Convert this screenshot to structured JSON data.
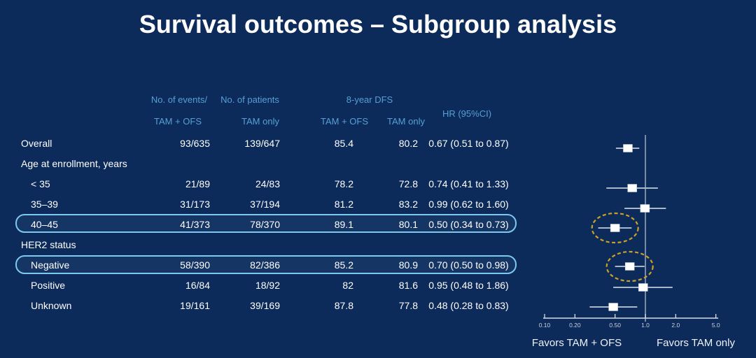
{
  "title": "Survival outcomes – Subgroup analysis",
  "colors": {
    "background": "#0d2b5a",
    "header_text": "#55a0d5",
    "body_text": "#ffffff",
    "highlight_border": "#7cc8ee",
    "ellipse": "#c9a227",
    "whisker": "#aab7c9",
    "reference_line": "#93a2b8",
    "axis": "#d5dce6",
    "marker_fill": "#ffffff"
  },
  "table": {
    "header": {
      "events_label_1": "No. of events/",
      "events_label_2": "No. of patients",
      "dfs_label": "8-year DFS",
      "hr_label": "HR (95%CI)",
      "sub": [
        "TAM + OFS",
        "TAM only",
        "TAM + OFS",
        "TAM only"
      ]
    },
    "rows": [
      {
        "label": "Overall",
        "events_tam_ofs": "93/635",
        "events_tam_only": "139/647",
        "dfs_tam_ofs": "85.4",
        "dfs_tam_only": "80.2",
        "hr": "0.67 (0.51 to 0.87)",
        "section": false,
        "highlight": false
      },
      {
        "label": "Age at enrollment, years",
        "section": true,
        "highlight": false
      },
      {
        "label": "< 35",
        "events_tam_ofs": "21/89",
        "events_tam_only": "24/83",
        "dfs_tam_ofs": "78.2",
        "dfs_tam_only": "72.8",
        "hr": "0.74 (0.41 to 1.33)",
        "section": false,
        "highlight": false
      },
      {
        "label": "35–39",
        "events_tam_ofs": "31/173",
        "events_tam_only": "37/194",
        "dfs_tam_ofs": "81.2",
        "dfs_tam_only": "83.2",
        "hr": "0.99 (0.62 to 1.60)",
        "section": false,
        "highlight": false
      },
      {
        "label": "40–45",
        "events_tam_ofs": "41/373",
        "events_tam_only": "78/370",
        "dfs_tam_ofs": "89.1",
        "dfs_tam_only": "80.1",
        "hr": "0.50 (0.34 to 0.73)",
        "section": false,
        "highlight": true
      },
      {
        "label": "HER2 status",
        "section": true,
        "highlight": false
      },
      {
        "label": "Negative",
        "events_tam_ofs": "58/390",
        "events_tam_only": "82/386",
        "dfs_tam_ofs": "85.2",
        "dfs_tam_only": "80.9",
        "hr": "0.70 (0.50 to 0.98)",
        "section": false,
        "highlight": true
      },
      {
        "label": "Positive",
        "events_tam_ofs": "16/84",
        "events_tam_only": "18/92",
        "dfs_tam_ofs": "82",
        "dfs_tam_only": "81.6",
        "hr": "0.95 (0.48 to 1.86)",
        "section": false,
        "highlight": false
      },
      {
        "label": "Unknown",
        "events_tam_ofs": "19/161",
        "events_tam_only": "39/169",
        "dfs_tam_ofs": "87.8",
        "dfs_tam_only": "77.8",
        "hr": "0.48 (0.28 to 0.83)",
        "section": false,
        "highlight": false
      }
    ]
  },
  "chart_data": {
    "type": "forest",
    "x_scale": "log",
    "xlim": [
      0.1,
      5.0
    ],
    "ticks": [
      0.1,
      0.2,
      0.5,
      1.0,
      2.0,
      5.0
    ],
    "tick_labels": [
      "0.10",
      "0.20",
      "0.50",
      "1.0",
      "2.0",
      "5.0"
    ],
    "reference_line": 1.0,
    "points": [
      {
        "label": "Overall",
        "hr": 0.67,
        "lo": 0.51,
        "hi": 0.87,
        "circled": false
      },
      {
        "label": "< 35",
        "hr": 0.74,
        "lo": 0.41,
        "hi": 1.33,
        "circled": false
      },
      {
        "label": "35–39",
        "hr": 0.99,
        "lo": 0.62,
        "hi": 1.6,
        "circled": false
      },
      {
        "label": "40–45",
        "hr": 0.5,
        "lo": 0.34,
        "hi": 0.73,
        "circled": true
      },
      {
        "label": "Negative",
        "hr": 0.7,
        "lo": 0.5,
        "hi": 0.98,
        "circled": true
      },
      {
        "label": "Positive",
        "hr": 0.95,
        "lo": 0.48,
        "hi": 1.86,
        "circled": false
      },
      {
        "label": "Unknown",
        "hr": 0.48,
        "lo": 0.28,
        "hi": 0.83,
        "circled": false
      }
    ],
    "favors_left": "Favors TAM + OFS",
    "favors_right": "Favors TAM only"
  }
}
